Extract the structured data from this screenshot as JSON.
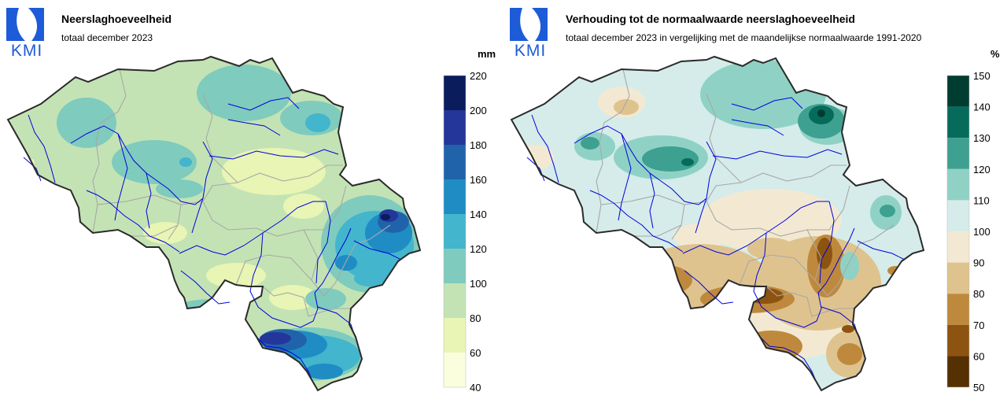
{
  "left_panel": {
    "logo_text": "KMI",
    "title": "Neerslaghoeveelheid",
    "subtitle": "totaal december 2023",
    "unit": "mm",
    "legend": {
      "ticks": [
        "220",
        "200",
        "180",
        "160",
        "140",
        "120",
        "100",
        "80",
        "60",
        "40"
      ],
      "colors": [
        "#0a1c5c",
        "#24369a",
        "#2163ab",
        "#1f8dc4",
        "#43b5cc",
        "#7fcbbd",
        "#c3e3b4",
        "#e8f5b4",
        "#fbfedd"
      ]
    }
  },
  "right_panel": {
    "logo_text": "KMI",
    "title": "Verhouding tot de normaalwaarde neerslaghoeveelheid",
    "subtitle": "totaal december 2023 in vergelijking met de maandelijkse normaalwaarde 1991-2020",
    "unit": "%",
    "legend": {
      "ticks": [
        "150",
        "140",
        "130",
        "120",
        "110",
        "100",
        "90",
        "80",
        "70",
        "60",
        "50"
      ],
      "colors": [
        "#003d30",
        "#076b5c",
        "#3ea090",
        "#8fd2c5",
        "#d5ecea",
        "#f3e9d2",
        "#dfc38e",
        "#bf893d",
        "#8d5310",
        "#553003"
      ]
    }
  },
  "colors": {
    "logo_blue": "#1d5bd8",
    "border": "#2a2a2a",
    "rivers": "#0000dd",
    "provinces": "#a8a8a8"
  }
}
